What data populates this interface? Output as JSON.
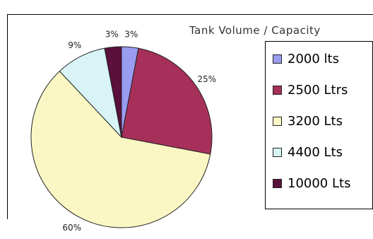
{
  "chart_data": {
    "type": "pie",
    "title": "Tank Volume / Capacity",
    "slices": [
      {
        "label": "2000 lts",
        "value": 3,
        "percent_label": "3%",
        "color": "#9a9cf2"
      },
      {
        "label": "2500 Ltrs",
        "value": 25,
        "percent_label": "25%",
        "color": "#a6305a"
      },
      {
        "label": "3200 Lts",
        "value": 60,
        "percent_label": "60%",
        "color": "#fbf7c4"
      },
      {
        "label": "4400 Lts",
        "value": 9,
        "percent_label": "9%",
        "color": "#d8f4f6"
      },
      {
        "label": "10000 Lts",
        "value": 3,
        "percent_label": "3%",
        "color": "#5a0f3c"
      }
    ],
    "legend_position": "right"
  }
}
